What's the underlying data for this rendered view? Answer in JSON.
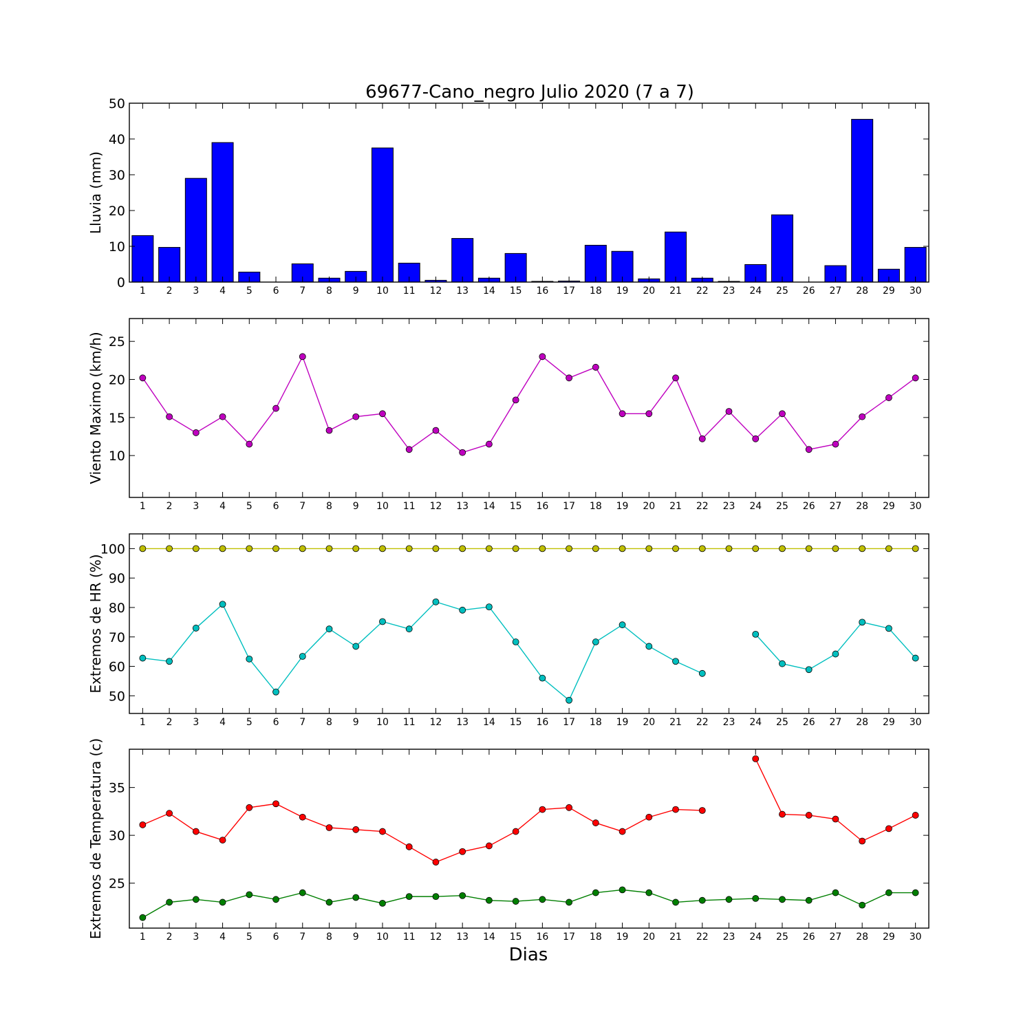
{
  "chart_data": {
    "title": "69677-Cano_negro Julio 2020  (7 a 7)",
    "xlabel": "Dias",
    "days": [
      1,
      2,
      3,
      4,
      5,
      6,
      7,
      8,
      9,
      10,
      11,
      12,
      13,
      14,
      15,
      16,
      17,
      18,
      19,
      20,
      21,
      22,
      23,
      24,
      25,
      26,
      27,
      28,
      29,
      30
    ],
    "panels": [
      {
        "type": "bar",
        "ylabel": "Lluvia (mm)",
        "ylim": [
          0,
          50
        ],
        "yticks": [
          0,
          10,
          20,
          30,
          40,
          50
        ],
        "series": [
          {
            "color": "#0000ff",
            "values": [
              13.0,
              9.7,
              29.0,
              39.0,
              2.8,
              0.0,
              5.1,
              1.1,
              3.0,
              37.5,
              5.3,
              0.5,
              12.2,
              1.1,
              8.0,
              0.2,
              0.3,
              10.3,
              8.6,
              0.9,
              14.0,
              1.1,
              0.2,
              4.9,
              18.8,
              0.0,
              4.6,
              45.5,
              3.6,
              9.7
            ]
          }
        ]
      },
      {
        "type": "line",
        "ylabel": "Viento Maximo (km/h)",
        "ylim": [
          4.5,
          28
        ],
        "yticks": [
          10,
          15,
          20,
          25
        ],
        "series": [
          {
            "color": "#bf00bf",
            "values": [
              20.2,
              15.1,
              13.0,
              15.1,
              11.5,
              16.2,
              23.0,
              13.3,
              15.1,
              15.5,
              10.8,
              13.3,
              10.4,
              11.5,
              17.3,
              23.0,
              20.2,
              21.6,
              15.5,
              15.5,
              20.2,
              12.2,
              15.8,
              12.2,
              15.5,
              10.8,
              11.5,
              15.1,
              17.6,
              20.2
            ]
          }
        ]
      },
      {
        "type": "line",
        "ylabel": "Extremos de HR (%)",
        "ylim": [
          44,
          105
        ],
        "yticks": [
          50,
          60,
          70,
          80,
          90,
          100
        ],
        "series": [
          {
            "color": "#bfbf00",
            "values": [
              100,
              100,
              100,
              100,
              100,
              100,
              100,
              100,
              100,
              100,
              100,
              100,
              100,
              100,
              100,
              100,
              100,
              100,
              100,
              100,
              100,
              100,
              100,
              100,
              100,
              100,
              100,
              100,
              100,
              100
            ]
          },
          {
            "color": "#00bfbf",
            "values": [
              62.8,
              61.7,
              73.0,
              81.1,
              62.5,
              51.3,
              63.4,
              72.7,
              66.8,
              75.2,
              72.7,
              81.9,
              79.1,
              80.2,
              68.3,
              56.0,
              48.5,
              68.3,
              74.1,
              66.8,
              61.7,
              57.6,
              null,
              70.9,
              60.9,
              58.9,
              64.2,
              75.0,
              72.9,
              62.8
            ]
          }
        ]
      },
      {
        "type": "line",
        "ylabel": "Extremos de Temperatura (c)",
        "ylim": [
          20.3,
          39
        ],
        "yticks": [
          25,
          30,
          35
        ],
        "series": [
          {
            "color": "#ff0000",
            "values": [
              31.1,
              32.3,
              30.4,
              29.5,
              32.9,
              33.3,
              31.9,
              30.8,
              30.6,
              30.4,
              28.8,
              27.2,
              28.3,
              28.9,
              30.4,
              32.7,
              32.9,
              31.3,
              30.4,
              31.9,
              32.7,
              32.6,
              null,
              38.0,
              32.2,
              32.1,
              31.7,
              29.4,
              30.7,
              32.1
            ]
          },
          {
            "color": "#007f00",
            "values": [
              21.4,
              23.0,
              23.3,
              23.0,
              23.8,
              23.3,
              24.0,
              23.0,
              23.5,
              22.9,
              23.6,
              23.6,
              23.7,
              23.2,
              23.1,
              23.3,
              23.0,
              24.0,
              24.3,
              24.0,
              23.0,
              23.2,
              23.3,
              23.4,
              23.3,
              23.2,
              24.0,
              22.7,
              24.0,
              24.0
            ]
          }
        ]
      }
    ]
  }
}
